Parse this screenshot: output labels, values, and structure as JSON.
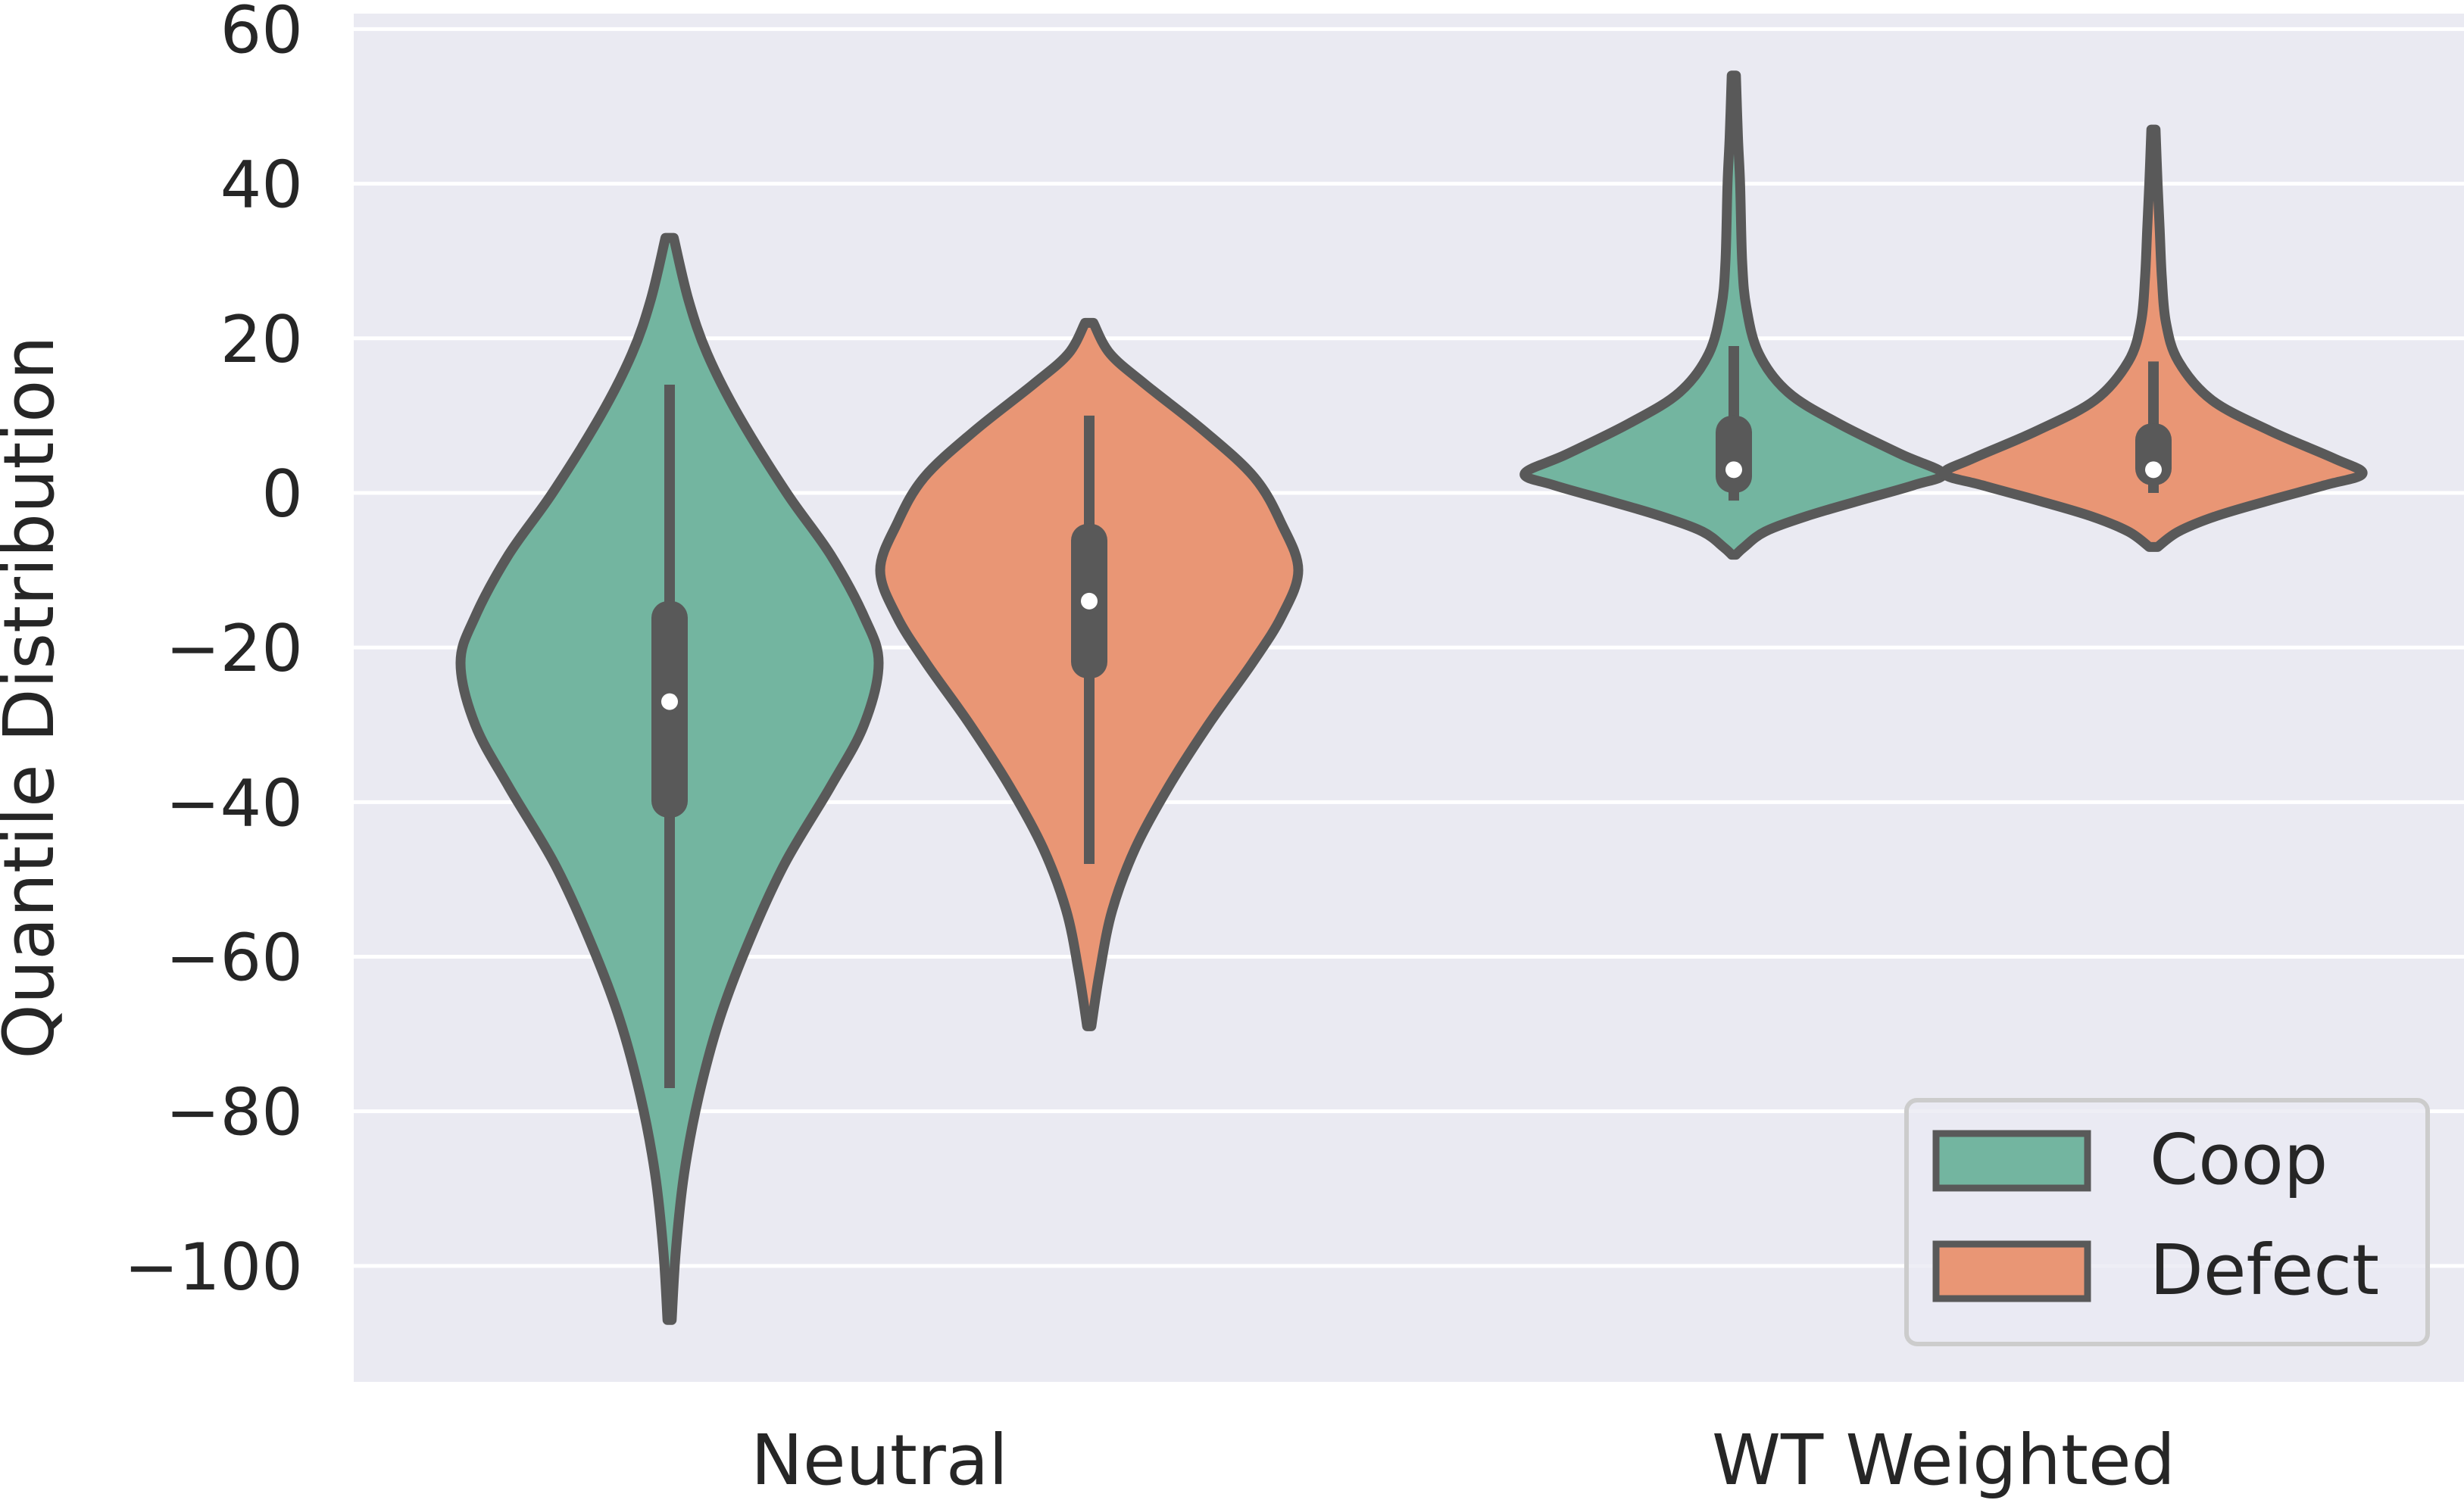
{
  "chart_data": {
    "type": "violin",
    "title": "",
    "xlabel": "",
    "ylabel": "Quantile Distribution",
    "ylim": [
      -115,
      62
    ],
    "yticks": [
      60,
      40,
      20,
      0,
      -20,
      -40,
      -60,
      -80,
      -100
    ],
    "ytick_labels": [
      "60",
      "40",
      "20",
      "0",
      "−20",
      "−40",
      "−60",
      "−80",
      "−100"
    ],
    "categories": [
      "Neutral",
      "WT Weighted"
    ],
    "grid": true,
    "legend_position": "lower-right",
    "colors": {
      "background": "#eaeaf2",
      "grid": "#ffffff",
      "outline": "#595959",
      "Coop": "#73b5a0",
      "Defect": "#e99675"
    },
    "series": [
      {
        "name": "Coop",
        "violins": [
          {
            "category": "Neutral",
            "min": -107,
            "max": 33,
            "whisker_low": -77,
            "whisker_high": 14,
            "q1": -42,
            "median": -27,
            "q3": -14,
            "profile": [
              [
                33,
                0.02
              ],
              [
                25,
                0.09
              ],
              [
                18,
                0.18
              ],
              [
                10,
                0.33
              ],
              [
                0,
                0.56
              ],
              [
                -8,
                0.77
              ],
              [
                -16,
                0.93
              ],
              [
                -22,
                1.0
              ],
              [
                -30,
                0.93
              ],
              [
                -38,
                0.77
              ],
              [
                -48,
                0.55
              ],
              [
                -58,
                0.38
              ],
              [
                -68,
                0.24
              ],
              [
                -78,
                0.14
              ],
              [
                -88,
                0.07
              ],
              [
                -98,
                0.03
              ],
              [
                -107,
                0.01
              ]
            ]
          },
          {
            "category": "WT Weighted",
            "min": -8,
            "max": 54,
            "whisker_low": -1,
            "whisker_high": 19,
            "q1": 0,
            "median": 3,
            "q3": 10,
            "profile": [
              [
                54,
                0.01
              ],
              [
                46,
                0.02
              ],
              [
                40,
                0.03
              ],
              [
                30,
                0.04
              ],
              [
                24,
                0.06
              ],
              [
                18,
                0.12
              ],
              [
                13,
                0.26
              ],
              [
                9,
                0.5
              ],
              [
                5,
                0.8
              ],
              [
                2.5,
                1.0
              ],
              [
                1,
                0.86
              ],
              [
                -1,
                0.6
              ],
              [
                -3,
                0.35
              ],
              [
                -5,
                0.15
              ],
              [
                -7,
                0.05
              ],
              [
                -8,
                0.01
              ]
            ]
          }
        ]
      },
      {
        "name": "Defect",
        "violins": [
          {
            "category": "Neutral",
            "min": -69,
            "max": 22,
            "whisker_low": -48,
            "whisker_high": 10,
            "q1": -24,
            "median": -14,
            "q3": -4,
            "profile": [
              [
                22,
                0.02
              ],
              [
                18,
                0.1
              ],
              [
                14,
                0.27
              ],
              [
                8,
                0.55
              ],
              [
                2,
                0.79
              ],
              [
                -4,
                0.92
              ],
              [
                -10,
                1.0
              ],
              [
                -16,
                0.92
              ],
              [
                -22,
                0.78
              ],
              [
                -30,
                0.57
              ],
              [
                -38,
                0.38
              ],
              [
                -46,
                0.22
              ],
              [
                -54,
                0.11
              ],
              [
                -62,
                0.05
              ],
              [
                -69,
                0.01
              ]
            ]
          },
          {
            "category": "WT Weighted",
            "min": -7,
            "max": 47,
            "whisker_low": 0,
            "whisker_high": 17,
            "q1": 1,
            "median": 3,
            "q3": 9,
            "profile": [
              [
                47,
                0.01
              ],
              [
                40,
                0.02
              ],
              [
                34,
                0.03
              ],
              [
                28,
                0.04
              ],
              [
                22,
                0.06
              ],
              [
                17,
                0.12
              ],
              [
                12,
                0.28
              ],
              [
                8,
                0.56
              ],
              [
                4.5,
                0.86
              ],
              [
                2.5,
                1.0
              ],
              [
                1,
                0.82
              ],
              [
                -1,
                0.55
              ],
              [
                -3,
                0.3
              ],
              [
                -5,
                0.12
              ],
              [
                -7,
                0.02
              ]
            ]
          }
        ]
      }
    ]
  }
}
